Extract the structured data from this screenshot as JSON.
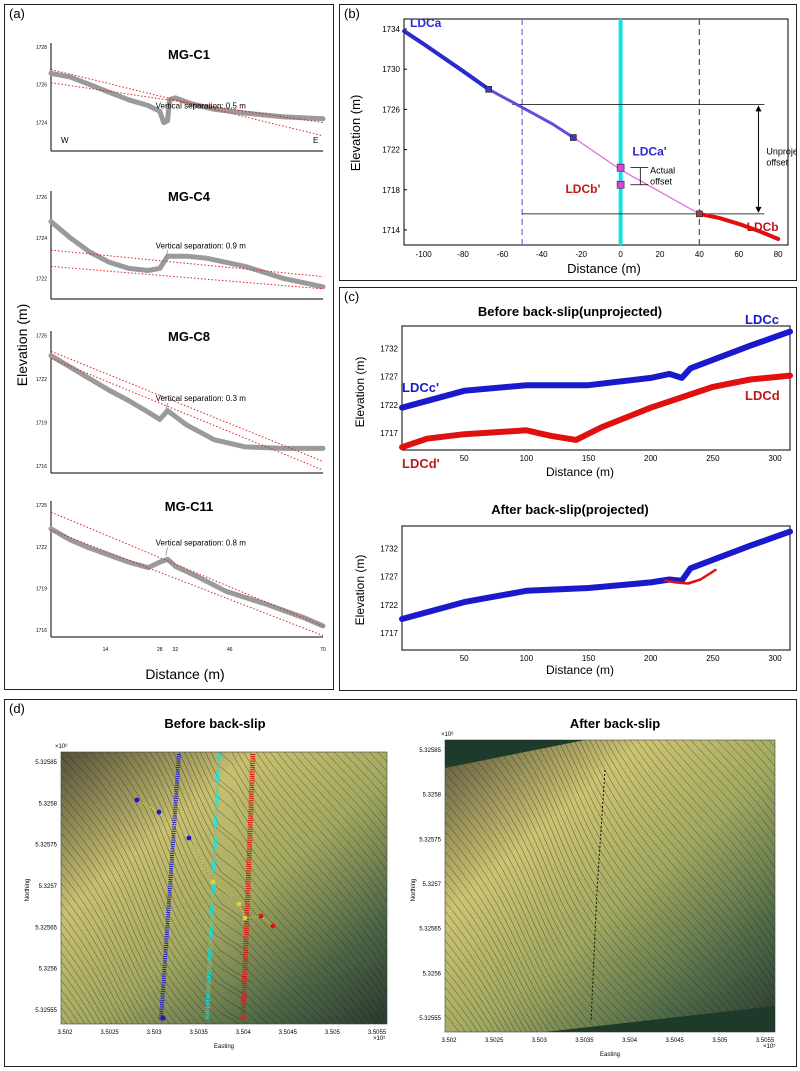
{
  "panel_labels": {
    "a": "(a)",
    "b": "(b)",
    "c": "(c)",
    "d": "(d)"
  },
  "chart_data": [
    {
      "panel": "a",
      "type": "line",
      "ylabel": "Elevation (m)",
      "xlabel": "Distance (m)",
      "x_ticks": [
        14,
        28,
        32,
        46,
        70
      ],
      "subplots": [
        {
          "title": "MG-C1",
          "annotation": "Vertical separation: 0.5 m",
          "y_ticks": [
            1724,
            1726,
            1728
          ],
          "ylim": [
            1722.5,
            1728.2
          ],
          "side_left": "W",
          "side_right": "E",
          "profile": [
            [
              0,
              1726.6
            ],
            [
              5,
              1726.4
            ],
            [
              10,
              1726.0
            ],
            [
              15,
              1725.6
            ],
            [
              20,
              1725.2
            ],
            [
              25,
              1724.9
            ],
            [
              28,
              1724.6
            ],
            [
              29,
              1724.0
            ],
            [
              30,
              1724.1
            ],
            [
              30.5,
              1725.2
            ],
            [
              32,
              1725.3
            ],
            [
              36,
              1725.0
            ],
            [
              42,
              1724.7
            ],
            [
              50,
              1724.5
            ],
            [
              60,
              1724.3
            ],
            [
              70,
              1724.2
            ]
          ],
          "guides": [
            [
              [
                0,
                1726.8
              ],
              [
                70,
                1723.3
              ]
            ],
            [
              [
                0,
                1726.1
              ],
              [
                70,
                1724.0
              ]
            ]
          ]
        },
        {
          "title": "MG-C4",
          "annotation": "Vertical separation: 0.9 m",
          "y_ticks": [
            1722,
            1724,
            1726
          ],
          "ylim": [
            1721.0,
            1726.3
          ],
          "profile": [
            [
              0,
              1724.8
            ],
            [
              5,
              1724.0
            ],
            [
              10,
              1723.3
            ],
            [
              15,
              1722.8
            ],
            [
              20,
              1722.5
            ],
            [
              25,
              1722.4
            ],
            [
              28,
              1722.5
            ],
            [
              29,
              1722.8
            ],
            [
              30,
              1723.1
            ],
            [
              35,
              1723.1
            ],
            [
              40,
              1723.0
            ],
            [
              50,
              1722.6
            ],
            [
              60,
              1722.0
            ],
            [
              70,
              1721.6
            ]
          ],
          "guides": [
            [
              [
                0,
                1723.4
              ],
              [
                70,
                1722.1
              ]
            ],
            [
              [
                0,
                1722.6
              ],
              [
                70,
                1721.5
              ]
            ]
          ]
        },
        {
          "title": "MG-C8",
          "annotation": "Vertical separation: 0.3 m",
          "y_ticks": [
            1716,
            1719,
            1722,
            1725
          ],
          "ylim": [
            1715.5,
            1725.3
          ],
          "profile": [
            [
              0,
              1723.6
            ],
            [
              5,
              1722.8
            ],
            [
              10,
              1722.0
            ],
            [
              15,
              1721.2
            ],
            [
              20,
              1720.5
            ],
            [
              25,
              1719.7
            ],
            [
              28,
              1719.2
            ],
            [
              29,
              1719.5
            ],
            [
              30,
              1719.8
            ],
            [
              31,
              1719.6
            ],
            [
              35,
              1718.8
            ],
            [
              42,
              1717.8
            ],
            [
              50,
              1717.3
            ],
            [
              60,
              1717.2
            ],
            [
              70,
              1717.2
            ]
          ],
          "guides": [
            [
              [
                0,
                1723.9
              ],
              [
                70,
                1716.3
              ]
            ],
            [
              [
                0,
                1723.4
              ],
              [
                70,
                1715.7
              ]
            ]
          ]
        },
        {
          "title": "MG-C11",
          "annotation": "Vertical separation: 0.8 m",
          "y_ticks": [
            1716,
            1719,
            1722,
            1725
          ],
          "ylim": [
            1715.5,
            1725.3
          ],
          "profile": [
            [
              0,
              1723.3
            ],
            [
              5,
              1722.5
            ],
            [
              10,
              1721.9
            ],
            [
              15,
              1721.4
            ],
            [
              20,
              1720.9
            ],
            [
              25,
              1720.5
            ],
            [
              28,
              1720.9
            ],
            [
              30,
              1721.1
            ],
            [
              32,
              1720.6
            ],
            [
              38,
              1719.8
            ],
            [
              45,
              1718.8
            ],
            [
              55,
              1717.9
            ],
            [
              65,
              1716.9
            ],
            [
              70,
              1716.3
            ]
          ],
          "guides": [
            [
              [
                0,
                1724.5
              ],
              [
                70,
                1716.3
              ]
            ],
            [
              [
                0,
                1723.2
              ],
              [
                70,
                1715.6
              ]
            ]
          ]
        }
      ]
    },
    {
      "panel": "b",
      "type": "line",
      "xlabel": "Distance (m)",
      "ylabel": "Elevation (m)",
      "xlim": [
        -110,
        85
      ],
      "ylim": [
        1712.5,
        1735
      ],
      "x_ticks": [
        -100,
        -80,
        -60,
        -40,
        -20,
        0,
        20,
        40,
        60,
        80
      ],
      "y_ticks": [
        1714,
        1718,
        1722,
        1726,
        1730,
        1734
      ],
      "series": [
        {
          "name": "LDCa",
          "x": [
            -110,
            -100,
            -80,
            -67,
            -50,
            -35,
            -24
          ],
          "y": [
            1733.8,
            1732.5,
            1729.8,
            1728.0,
            1726.2,
            1724.6,
            1723.2
          ]
        },
        {
          "name": "LDCb",
          "x": [
            40,
            50,
            60,
            70,
            80
          ],
          "y": [
            1715.6,
            1715.2,
            1714.6,
            1713.9,
            1713.1
          ]
        },
        {
          "name": "projection",
          "x": [
            -24,
            0,
            40
          ],
          "y": [
            1723.2,
            1720.0,
            1715.6
          ]
        }
      ],
      "points": [
        {
          "label": "",
          "x": -67,
          "y": 1728.0
        },
        {
          "label": "",
          "x": -24,
          "y": 1723.2
        },
        {
          "label": "LDCa'",
          "x": 0,
          "y": 1720.2
        },
        {
          "label": "LDCb'",
          "x": 0,
          "y": 1718.5
        },
        {
          "label": "",
          "x": 40,
          "y": 1715.6
        }
      ],
      "vlines": [
        -50,
        0,
        40
      ],
      "labels": {
        "ldca": "LDCa",
        "ldcb": "LDCb",
        "ldca_p": "LDCa'",
        "ldcb_p": "LDCb'",
        "actual1": "Actual",
        "actual2": "offset",
        "unproj1": "Unprojected",
        "unproj2": "offset"
      },
      "offsets": {
        "unprojected_top": 1726.5,
        "unprojected_bottom": 1715.6
      }
    },
    {
      "panel": "c",
      "type": "line",
      "subplots": [
        {
          "title": "Before back-slip(unprojected)",
          "xlabel": "Distance (m)",
          "ylabel": "Elevation (m)",
          "xlim": [
            0,
            312
          ],
          "ylim": [
            1714,
            1736
          ],
          "x_ticks": [
            50,
            100,
            150,
            200,
            250,
            300
          ],
          "y_ticks": [
            1717,
            1722,
            1727,
            1732
          ],
          "series": [
            {
              "name": "LDCc",
              "x": [
                0,
                50,
                100,
                150,
                200,
                215,
                225,
                232,
                250,
                280,
                312
              ],
              "y": [
                1721.5,
                1724.5,
                1725.5,
                1725.5,
                1726.8,
                1727.5,
                1726.8,
                1728.5,
                1730.0,
                1732.5,
                1735.0
              ]
            },
            {
              "name": "LDCd",
              "x": [
                0,
                20,
                50,
                100,
                120,
                140,
                160,
                200,
                250,
                280,
                312
              ],
              "y": [
                1714.5,
                1716.0,
                1716.8,
                1717.5,
                1716.5,
                1715.8,
                1718.0,
                1721.5,
                1725.2,
                1726.5,
                1727.2
              ]
            }
          ],
          "labels": {
            "c": "LDCc",
            "c_p": "LDCc'",
            "d": "LDCd",
            "d_p": "LDCd'"
          }
        },
        {
          "title": "After back-slip(projected)",
          "xlabel": "Distance (m)",
          "ylabel": "Elevation (m)",
          "xlim": [
            0,
            312
          ],
          "ylim": [
            1714,
            1736
          ],
          "x_ticks": [
            50,
            100,
            150,
            200,
            250,
            300
          ],
          "y_ticks": [
            1717,
            1722,
            1727,
            1732
          ],
          "series": [
            {
              "name": "LDCc",
              "x": [
                0,
                50,
                100,
                150,
                200,
                215,
                225,
                232,
                250,
                280,
                312
              ],
              "y": [
                1719.5,
                1722.5,
                1724.5,
                1725.0,
                1726.0,
                1726.5,
                1726.3,
                1728.5,
                1730.0,
                1732.5,
                1735.0
              ]
            },
            {
              "name": "LDCd",
              "x": [
                212,
                220,
                230,
                240,
                252
              ],
              "y": [
                1726.3,
                1726.0,
                1725.8,
                1726.5,
                1728.2
              ]
            }
          ]
        }
      ]
    },
    {
      "panel": "d",
      "type": "heatmap",
      "subplots": [
        {
          "title": "Before back-slip",
          "xlabel": "Easting",
          "ylabel": "Northing",
          "x_exp": "×10⁵",
          "y_exp": "×10⁶",
          "x_ticks": [
            "3.502",
            "3.5025",
            "3.503",
            "3.5035",
            "3.504",
            "3.5045",
            "3.505",
            "3.5055"
          ],
          "y_ticks": [
            "5.32585",
            "5.3258",
            "5.32575",
            "5.3257",
            "5.32565",
            "5.3256",
            "5.32555"
          ]
        },
        {
          "title": "After back-slip",
          "xlabel": "Easting",
          "ylabel": "Northing",
          "x_exp": "×10⁵",
          "y_exp": "×10⁶",
          "x_ticks": [
            "3.502",
            "3.5025",
            "3.503",
            "3.5035",
            "3.504",
            "3.5045",
            "3.505",
            "3.5055"
          ],
          "y_ticks": [
            "5.32585",
            "5.3258",
            "5.32575",
            "5.3257",
            "5.32565",
            "5.3256",
            "5.32555"
          ]
        }
      ]
    }
  ],
  "colors": {
    "blue": "#1a1acc",
    "red": "#e01010",
    "cyan": "#19e0e0",
    "purple": "#5050d0",
    "pink": "#e070e0",
    "magenta": "#e040e0",
    "gray": "#9a9a9a",
    "dotred": "#e02020",
    "darkred": "#a03030"
  }
}
